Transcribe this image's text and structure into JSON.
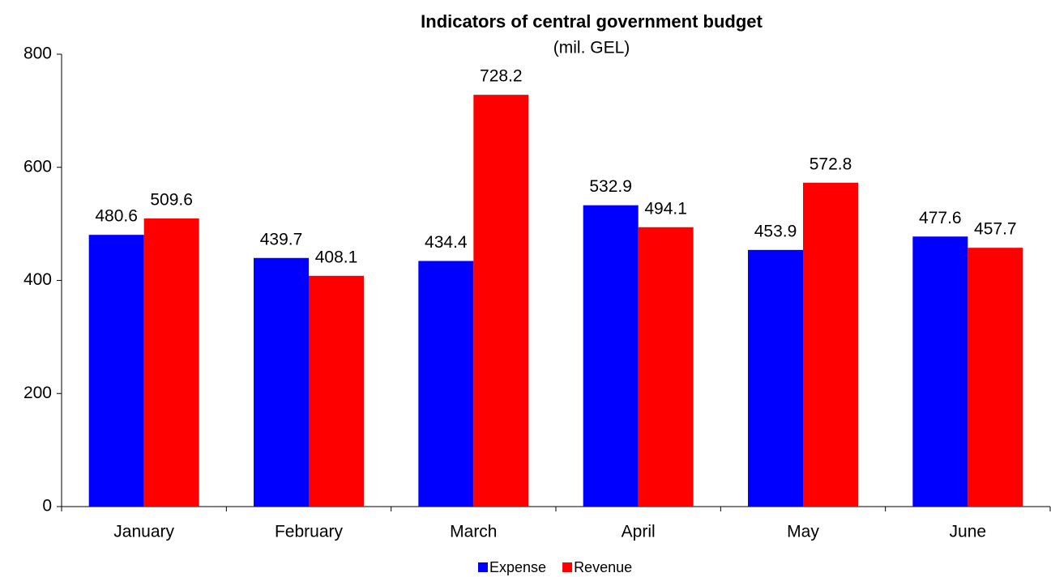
{
  "chart_data": {
    "type": "bar",
    "title": "Indicators of central government budget",
    "subtitle": "(mil. GEL)",
    "categories": [
      "January",
      "February",
      "March",
      "April",
      "May",
      "June"
    ],
    "series": [
      {
        "name": "Expense",
        "color": "#0000ff",
        "values": [
          480.6,
          439.7,
          434.4,
          532.9,
          453.9,
          477.6
        ]
      },
      {
        "name": "Revenue",
        "color": "#ff0000",
        "values": [
          509.6,
          408.1,
          728.2,
          494.1,
          572.8,
          457.7
        ]
      }
    ],
    "ylim": [
      0,
      800
    ],
    "yticks": [
      0,
      200,
      400,
      600,
      800
    ],
    "grid": false,
    "legend": "bottom"
  }
}
